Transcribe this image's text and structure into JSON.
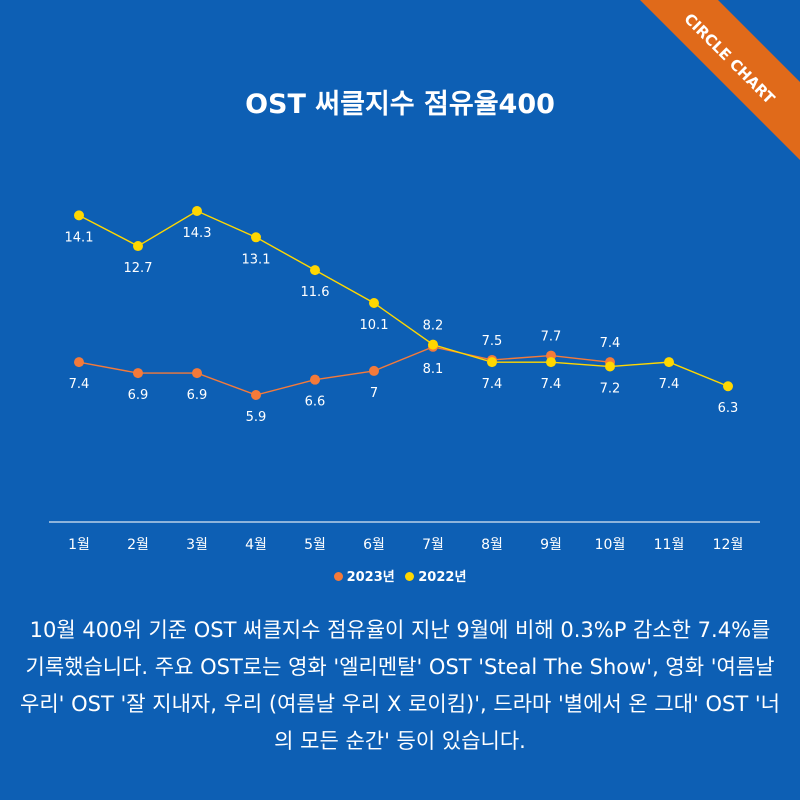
{
  "title": "OST 써클지수 점유율400",
  "badge": {
    "text": "CIRCLE CHART",
    "color": "#e06a1a"
  },
  "colors": {
    "background": "#0d5fb4",
    "series_2023": "#f47a3a",
    "series_2022": "#ffd700",
    "axis": "#ffffff"
  },
  "chart_data": {
    "type": "line",
    "title": "OST 써클지수 점유율400",
    "categories": [
      "1월",
      "2월",
      "3월",
      "4월",
      "5월",
      "6월",
      "7월",
      "8월",
      "9월",
      "10월",
      "11월",
      "12월"
    ],
    "series": [
      {
        "name": "2023년",
        "values": [
          7.4,
          6.9,
          6.9,
          5.9,
          6.6,
          7,
          8.1,
          7.5,
          7.7,
          7.4,
          null,
          null
        ],
        "labels": [
          "7.4",
          "6.9",
          "6.9",
          "5.9",
          "6.6",
          "7",
          "8.1",
          "7.5",
          "7.7",
          "7.4",
          "",
          ""
        ]
      },
      {
        "name": "2022년",
        "values": [
          14.1,
          12.7,
          14.3,
          13.1,
          11.6,
          10.1,
          8.2,
          7.4,
          7.4,
          7.2,
          7.4,
          6.3
        ],
        "labels": [
          "14.1",
          "12.7",
          "14.3",
          "13.1",
          "11.6",
          "10.1",
          "8.2",
          "7.4",
          "7.4",
          "7.2",
          "7.4",
          "6.3"
        ]
      }
    ],
    "grid": false,
    "legend": "bottom-center",
    "ylim": [
      0,
      15
    ]
  },
  "legend_items": [
    "2023년",
    "2022년"
  ],
  "caption": "10월 400위 기준 OST 써클지수 점유율이 지난 9월에 비해 0.3%P 감소한 7.4%를 기록했습니다. 주요 OST로는 영화 '엘리멘탈' OST 'Steal The Show', 영화 '여름날 우리' OST '잘 지내자, 우리 (여름날 우리 X 로이킴)', 드라마 '별에서 온 그대' OST '너의 모든 순간' 등이 있습니다."
}
